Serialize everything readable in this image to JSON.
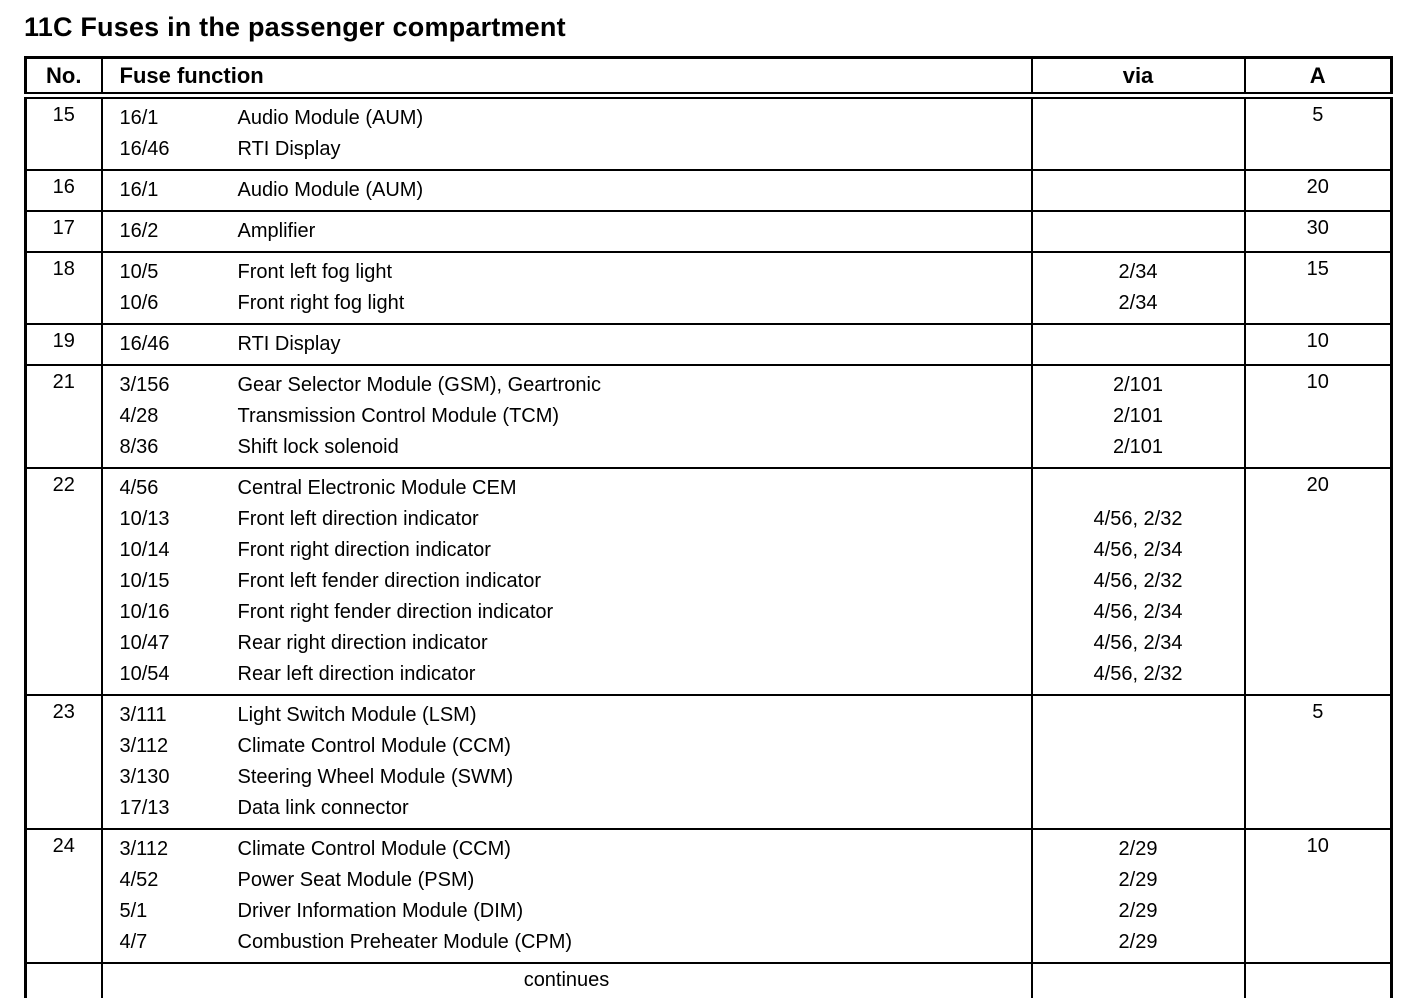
{
  "page": {
    "title": "11C Fuses in the passenger compartment"
  },
  "table": {
    "headers": {
      "no": "No.",
      "function": "Fuse function",
      "via": "via",
      "amp": "A"
    },
    "rows": [
      {
        "no": "15",
        "amp": "5",
        "items": [
          {
            "id": "16/1",
            "desc": "Audio Module (AUM)",
            "via": ""
          },
          {
            "id": "16/46",
            "desc": "RTI Display",
            "via": ""
          }
        ]
      },
      {
        "no": "16",
        "amp": "20",
        "items": [
          {
            "id": "16/1",
            "desc": "Audio Module (AUM)",
            "via": ""
          }
        ]
      },
      {
        "no": "17",
        "amp": "30",
        "items": [
          {
            "id": "16/2",
            "desc": "Amplifier",
            "via": ""
          }
        ]
      },
      {
        "no": "18",
        "amp": "15",
        "items": [
          {
            "id": "10/5",
            "desc": "Front left fog light",
            "via": "2/34"
          },
          {
            "id": "10/6",
            "desc": "Front right fog light",
            "via": "2/34"
          }
        ]
      },
      {
        "no": "19",
        "amp": "10",
        "items": [
          {
            "id": "16/46",
            "desc": "RTI Display",
            "via": ""
          }
        ]
      },
      {
        "no": "21",
        "amp": "10",
        "items": [
          {
            "id": "3/156",
            "desc": "Gear Selector Module (GSM), Geartronic",
            "via": "2/101"
          },
          {
            "id": "4/28",
            "desc": "Transmission Control Module (TCM)",
            "via": "2/101"
          },
          {
            "id": "8/36",
            "desc": "Shift lock solenoid",
            "via": "2/101"
          }
        ]
      },
      {
        "no": "22",
        "amp": "20",
        "items": [
          {
            "id": "4/56",
            "desc": "Central Electronic Module CEM",
            "via": ""
          },
          {
            "id": "10/13",
            "desc": "Front left direction indicator",
            "via": "4/56, 2/32"
          },
          {
            "id": "10/14",
            "desc": "Front right direction indicator",
            "via": "4/56, 2/34"
          },
          {
            "id": "10/15",
            "desc": "Front left fender direction indicator",
            "via": "4/56, 2/32"
          },
          {
            "id": "10/16",
            "desc": "Front right fender direction indicator",
            "via": "4/56, 2/34"
          },
          {
            "id": "10/47",
            "desc": "Rear right direction indicator",
            "via": "4/56, 2/34"
          },
          {
            "id": "10/54",
            "desc": "Rear left direction indicator",
            "via": "4/56, 2/32"
          }
        ]
      },
      {
        "no": "23",
        "amp": "5",
        "items": [
          {
            "id": "3/111",
            "desc": "Light Switch Module (LSM)",
            "via": ""
          },
          {
            "id": "3/112",
            "desc": "Climate Control Module (CCM)",
            "via": ""
          },
          {
            "id": "3/130",
            "desc": "Steering Wheel Module (SWM)",
            "via": ""
          },
          {
            "id": "17/13",
            "desc": "Data link connector",
            "via": ""
          }
        ]
      },
      {
        "no": "24",
        "amp": "10",
        "items": [
          {
            "id": "3/112",
            "desc": "Climate Control Module (CCM)",
            "via": "2/29"
          },
          {
            "id": "4/52",
            "desc": "Power Seat Module (PSM)",
            "via": "2/29"
          },
          {
            "id": "5/1",
            "desc": "Driver Information Module (DIM)",
            "via": "2/29"
          },
          {
            "id": "4/7",
            "desc": "Combustion Preheater Module (CPM)",
            "via": "2/29"
          }
        ]
      }
    ],
    "footer": "continues"
  }
}
